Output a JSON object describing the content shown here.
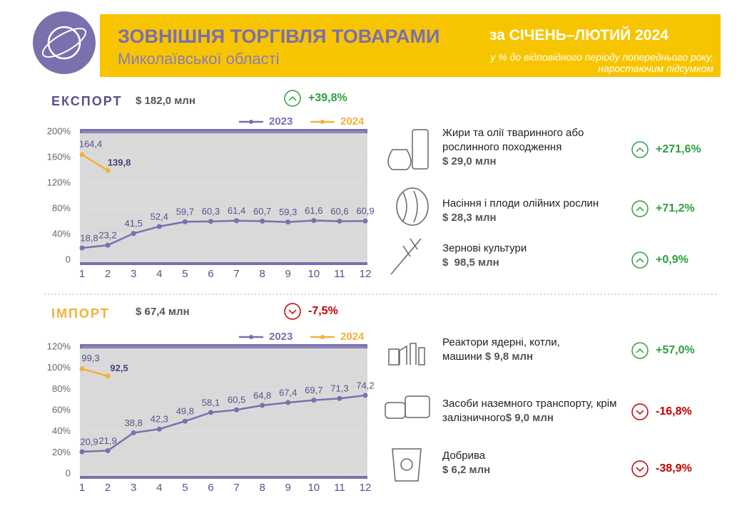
{
  "header": {
    "title": "ЗОВНІШНЯ ТОРГІВЛЯ ТОВАРАМИ",
    "subtitle": "Миколаївської області",
    "period": "за СІЧЕНЬ–ЛЮТИЙ 2024",
    "note": [
      "у % до відповідного періоду попереднього року,",
      "наростаючим підсумком"
    ]
  },
  "export": {
    "label": "ЕКСПОРТ",
    "amount": "$ 182,0 млн",
    "change": "+39,8%",
    "items": [
      {
        "name": "Жири та олії тваринного або рослинного походження",
        "amount": "$ 29,0 млн",
        "change": "+271,6%"
      },
      {
        "name": "Насіння і плоди олійних рослин",
        "amount": "$ 28,3 млн",
        "change": "+71,2%"
      },
      {
        "name": "Зернові культури",
        "amount": "$  98,5 млн",
        "change": "+0,9%"
      }
    ]
  },
  "import": {
    "label": "ІМПОРТ",
    "amount": "$ 67,4 млн",
    "change": "-7,5%",
    "items": [
      {
        "name": "Реактори ядерні, котли, машини",
        "amount": "$ 9,8 млн",
        "change": "+57,0%"
      },
      {
        "name": "Засоби наземного транспорту, крім залізничного",
        "amount": "$ 9,0 млн",
        "change": "-16,8%"
      },
      {
        "name": "Добрива",
        "amount": "$ 6,2 млн",
        "change": "-38,9%"
      }
    ]
  },
  "chart_data": [
    {
      "type": "line",
      "categories": [
        "1",
        "2",
        "3",
        "4",
        "5",
        "6",
        "7",
        "8",
        "9",
        "10",
        "11",
        "12"
      ],
      "series": [
        {
          "name": "2023",
          "color": "#7b6fae",
          "values": [
            18.8,
            23.2,
            41.5,
            52.4,
            59.7,
            60.3,
            61.4,
            60.7,
            59.3,
            61.6,
            60.6,
            60.9
          ],
          "value_labels": [
            "18,8",
            "23,2",
            "41,5",
            "52,4",
            "59,7",
            "60,3",
            "61,4",
            "60,7",
            "59,3",
            "61,6",
            "60,6",
            "60,9"
          ]
        },
        {
          "name": "2024",
          "color": "#f0b23c",
          "values": [
            164.4,
            139.8,
            null,
            null,
            null,
            null,
            null,
            null,
            null,
            null,
            null,
            null
          ],
          "value_labels": [
            "164,4",
            "139,8",
            null,
            null,
            null,
            null,
            null,
            null,
            null,
            null,
            null,
            null
          ]
        }
      ],
      "ylim": [
        0,
        200
      ],
      "yticks": [
        0,
        {
          "value": 40,
          "label": "40%"
        },
        {
          "value": 80,
          "label": "80%"
        },
        {
          "value": 120,
          "label": "120%"
        },
        {
          "value": 160,
          "label": "160%"
        },
        {
          "value": 200,
          "label": "200%"
        }
      ]
    },
    {
      "type": "line",
      "categories": [
        "1",
        "2",
        "3",
        "4",
        "5",
        "6",
        "7",
        "8",
        "9",
        "10",
        "11",
        "12"
      ],
      "series": [
        {
          "name": "2023",
          "color": "#7b6fae",
          "values": [
            20.9,
            21.9,
            38.8,
            42.3,
            49.8,
            58.1,
            60.5,
            64.8,
            67.4,
            69.7,
            71.3,
            74.2
          ],
          "value_labels": [
            "20,9",
            "21,9",
            "38,8",
            "42,3",
            "49,8",
            "58,1",
            "60,5",
            "64,8",
            "67,4",
            "69,7",
            "71,3",
            "74,2"
          ]
        },
        {
          "name": "2024",
          "color": "#f0b23c",
          "values": [
            99.3,
            92.5,
            null,
            null,
            null,
            null,
            null,
            null,
            null,
            null,
            null,
            null
          ],
          "value_labels": [
            "99,3",
            "92,5",
            null,
            null,
            null,
            null,
            null,
            null,
            null,
            null,
            null,
            null
          ]
        }
      ],
      "ylim": [
        0,
        120
      ],
      "yticks": [
        0,
        {
          "value": 20,
          "label": "20%"
        },
        {
          "value": 40,
          "label": "40%"
        },
        {
          "value": 60,
          "label": "60%"
        },
        {
          "value": 80,
          "label": "80%"
        },
        {
          "value": 100,
          "label": "100%"
        },
        {
          "value": 120,
          "label": "120%"
        }
      ]
    }
  ]
}
